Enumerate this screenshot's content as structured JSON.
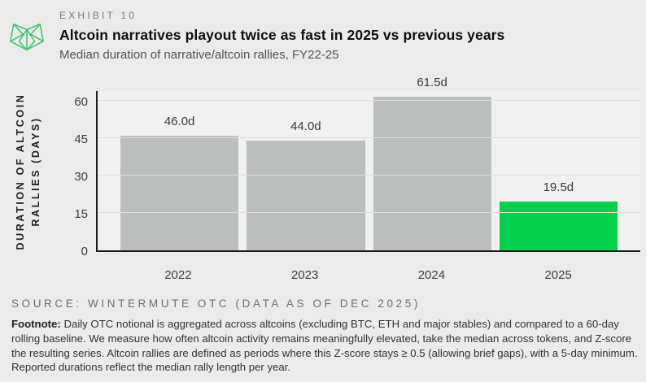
{
  "header": {
    "exhibit": "EXHIBIT 10",
    "title": "Altcoin narratives playout twice as fast in 2025 vs previous years",
    "subtitle": "Median duration of narrative/altcoin rallies, FY22-25",
    "logo_icon": "wintermute-logo"
  },
  "colors": {
    "background": "#ebebea",
    "plot_background": "#f1f1f0",
    "gridline": "#dddddc",
    "axis": "#1c1c1c",
    "bar_gray": "#babfbd",
    "accent_green": "#05d04b",
    "logo_green": "#3ec46d"
  },
  "chart_data": {
    "type": "bar",
    "title": "Altcoin narratives playout twice as fast in 2025 vs previous years",
    "subtitle": "Median duration of narrative/altcoin rallies, FY22-25",
    "categories": [
      "2022",
      "2023",
      "2024",
      "2025"
    ],
    "values": [
      46.0,
      44.0,
      61.5,
      19.5
    ],
    "value_labels": [
      "46.0d",
      "44.0d",
      "61.5d",
      "19.5d"
    ],
    "bar_colors": [
      "#babfbd",
      "#babfbd",
      "#babfbd",
      "#05d04b"
    ],
    "xlabel": "",
    "ylabel": "DURATION OF ALTCOIN RALLIES (DAYS)",
    "ylabel_line1": "DURATION OF ALTCOIN",
    "ylabel_line2": "RALLIES (DAYS)",
    "yticks": [
      0,
      15,
      30,
      45,
      60
    ],
    "ylim": [
      0,
      64.5
    ],
    "grid": true,
    "legend": "none"
  },
  "source": "SOURCE: WINTERMUTE OTC (DATA AS OF DEC 2025)",
  "footnote": {
    "label": "Footnote:",
    "text": " Daily OTC notional is aggregated across altcoins (excluding BTC, ETH and major stables) and compared to a 60-day rolling baseline. We measure how often altcoin activity remains meaningfully elevated, take the median across tokens, and Z-score the resulting series. Altcoin rallies are defined as periods where this Z-score stays ≥ 0.5 (allowing brief gaps), with a 5-day minimum. Reported durations reflect the median rally length per year."
  }
}
